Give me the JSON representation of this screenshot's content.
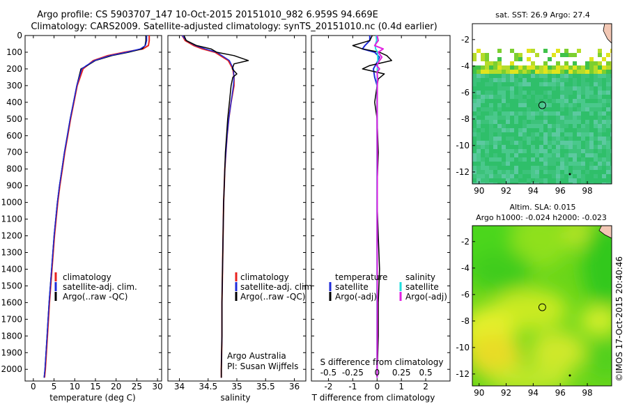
{
  "header": {
    "line1": "Argo profile: CS 5903707_147 10-Oct-2015 20151010_982 6.959S 94.669E",
    "line2": "Climatology: CARS2009. Satellite-adjusted climatology: synTS_20151010.nc (0.4d earlier)"
  },
  "footer": {
    "credit_line1": "Argo Australia",
    "credit_line2": "PI: Susan Wijffels",
    "stamp": "©IMOS 17-Oct-2015 20:40:46"
  },
  "colors": {
    "climatology": "#e8231f",
    "satellite": "#1f2bd8",
    "argo": "#000000",
    "s_satellite": "#20dede",
    "s_argo": "#e020e0"
  },
  "chart_data": [
    {
      "type": "line",
      "xlabel": "temperature (deg C)",
      "ylabel": "",
      "xlim": [
        -2,
        31
      ],
      "ylim": [
        2070,
        0
      ],
      "xticks": [
        0,
        5,
        10,
        15,
        20,
        25,
        30
      ],
      "yticks": [
        0,
        100,
        200,
        300,
        400,
        500,
        600,
        700,
        800,
        900,
        1000,
        1100,
        1200,
        1300,
        1400,
        1500,
        1600,
        1700,
        1800,
        1900,
        2000
      ],
      "legend": [
        "climatology",
        "satellite-adj. clim.",
        "Argo(..raw -QC)"
      ],
      "legend_placement": "lower-right",
      "series": [
        {
          "name": "climatology",
          "depth": [
            0,
            30,
            60,
            80,
            100,
            120,
            150,
            180,
            200,
            250,
            300,
            400,
            500,
            600,
            700,
            800,
            900,
            1000,
            1200,
            1400,
            1600,
            1800,
            2000,
            2050
          ],
          "values": [
            28.0,
            28.0,
            27.8,
            26.5,
            22.0,
            18.0,
            14.5,
            13.0,
            12.0,
            11.3,
            10.6,
            9.8,
            9.0,
            8.3,
            7.6,
            7.0,
            6.4,
            5.9,
            5.1,
            4.5,
            3.9,
            3.4,
            2.9,
            2.7
          ]
        },
        {
          "name": "satellite-adj. clim.",
          "depth": [
            0,
            30,
            60,
            80,
            100,
            120,
            150,
            180,
            200,
            250,
            300,
            400,
            500,
            600,
            700,
            800,
            900,
            1000,
            1200,
            1400,
            1600,
            1800,
            2000,
            2050
          ],
          "values": [
            27.2,
            27.2,
            27.0,
            26.3,
            23.0,
            19.0,
            15.0,
            13.0,
            11.5,
            11.0,
            10.5,
            9.7,
            8.9,
            8.2,
            7.5,
            6.9,
            6.3,
            5.8,
            5.0,
            4.4,
            3.8,
            3.3,
            2.8,
            2.6
          ]
        },
        {
          "name": "Argo(..raw -QC)",
          "depth": [
            0,
            30,
            60,
            80,
            100,
            120,
            150,
            180,
            200,
            250,
            300,
            400,
            500,
            600,
            700,
            800,
            900,
            1000,
            1200,
            1400,
            1600,
            1800,
            2000,
            2050
          ],
          "values": [
            27.4,
            27.4,
            27.1,
            25.8,
            22.5,
            18.5,
            14.8,
            12.8,
            11.7,
            11.1,
            10.5,
            9.7,
            8.9,
            8.2,
            7.5,
            6.9,
            6.3,
            5.8,
            5.0,
            4.4,
            3.8,
            3.3,
            2.8,
            2.6
          ]
        }
      ]
    },
    {
      "type": "line",
      "xlabel": "salinity",
      "ylabel": "",
      "xlim": [
        33.8,
        36.2
      ],
      "ylim": [
        2070,
        0
      ],
      "xticks": [
        34,
        34.5,
        35,
        35.5,
        36
      ],
      "legend": [
        "climatology",
        "satellite-adj. clim.",
        "Argo(..raw -QC)"
      ],
      "legend_placement": "lower-right",
      "series": [
        {
          "name": "climatology",
          "depth": [
            0,
            30,
            60,
            80,
            100,
            150,
            200,
            250,
            300,
            400,
            500,
            600,
            700,
            800,
            900,
            1000,
            1200,
            1400,
            1600,
            1800,
            2000,
            2050
          ],
          "values": [
            34.05,
            34.1,
            34.25,
            34.4,
            34.62,
            34.85,
            34.93,
            34.95,
            34.95,
            34.9,
            34.86,
            34.83,
            34.81,
            34.79,
            34.78,
            34.77,
            34.76,
            34.75,
            34.74,
            34.74,
            34.73,
            34.73
          ]
        },
        {
          "name": "satellite-adj. clim.",
          "depth": [
            0,
            30,
            60,
            80,
            100,
            150,
            200,
            250,
            300,
            400,
            500,
            600,
            700,
            800,
            900,
            1000,
            1200,
            1400,
            1600,
            1800,
            2000,
            2050
          ],
          "values": [
            34.05,
            34.12,
            34.28,
            34.45,
            34.65,
            34.87,
            34.94,
            34.95,
            34.94,
            34.9,
            34.86,
            34.83,
            34.81,
            34.79,
            34.78,
            34.77,
            34.76,
            34.75,
            34.74,
            34.74,
            34.73,
            34.73
          ]
        },
        {
          "name": "Argo(..raw -QC)",
          "depth": [
            0,
            30,
            60,
            80,
            100,
            120,
            150,
            170,
            200,
            230,
            250,
            300,
            400,
            500,
            600,
            700,
            800,
            900,
            1000,
            1200,
            1400,
            1600,
            1800,
            2000,
            2050
          ],
          "values": [
            34.08,
            34.12,
            34.3,
            34.55,
            34.65,
            34.95,
            35.2,
            34.95,
            34.92,
            35.0,
            34.93,
            34.9,
            34.87,
            34.84,
            34.82,
            34.8,
            34.79,
            34.78,
            34.77,
            34.76,
            34.75,
            34.74,
            34.74,
            34.73,
            34.73
          ]
        }
      ]
    },
    {
      "type": "line",
      "xlabel": "T difference from climatology",
      "secondary_xlabel": "S difference from climatology",
      "xlim": [
        -2.7,
        3.0
      ],
      "ylim": [
        2070,
        0
      ],
      "xticks": [
        -2,
        -1,
        0,
        1,
        2
      ],
      "secondary_xticks": [
        "-0.5",
        "-0.25",
        "0",
        "0.25",
        "0.5"
      ],
      "legend": [
        "temperature",
        "satellite",
        "Argo(-adj)",
        "salinity",
        "satellite",
        "Argo(-adj)"
      ],
      "legend_placement": "lower-center",
      "series": [
        {
          "name": "satellite",
          "depth": [
            0,
            30,
            60,
            80,
            100,
            130,
            160,
            200,
            250,
            300,
            400,
            600,
            800,
            1000,
            1400,
            1800,
            2050
          ],
          "values": [
            -0.3,
            -0.3,
            -0.5,
            -0.6,
            -0.1,
            0.1,
            0.0,
            -0.15,
            -0.1,
            0.0,
            0.0,
            0.0,
            0.0,
            0.0,
            0.0,
            0.0,
            0.0
          ]
        },
        {
          "name": "Argo(-adj)",
          "depth": [
            0,
            30,
            60,
            80,
            100,
            120,
            150,
            180,
            200,
            230,
            260,
            300,
            400,
            500,
            700,
            900,
            1000,
            1200,
            1400,
            1600,
            1800,
            2050
          ],
          "values": [
            -0.2,
            -0.3,
            -1.0,
            -0.6,
            0.1,
            0.4,
            0.6,
            -0.3,
            -0.6,
            0.3,
            0.05,
            0.0,
            -0.1,
            0.0,
            0.05,
            0.0,
            0.0,
            0.05,
            0.1,
            0.05,
            0.05,
            0.0
          ]
        },
        {
          "name": "satellite",
          "depth": [
            0,
            30,
            60,
            80,
            100,
            150,
            200,
            300,
            500,
            800,
            1200,
            1600,
            2050
          ],
          "values": [
            -0.04,
            -0.02,
            -0.08,
            -0.06,
            0.02,
            0.03,
            0.01,
            0.0,
            0.0,
            0.0,
            0.0,
            0.0,
            0.0
          ]
        },
        {
          "name": "Argo(-adj)",
          "depth": [
            0,
            30,
            60,
            80,
            100,
            130,
            150,
            180,
            200,
            220,
            260,
            300,
            500,
            800,
            1200,
            1600,
            2050
          ],
          "values": [
            0.0,
            0.05,
            -0.1,
            0.25,
            0.05,
            0.2,
            0.1,
            -0.02,
            0.1,
            0.0,
            0.02,
            0.01,
            0.0,
            0.01,
            0.0,
            0.01,
            0.0
          ]
        }
      ]
    },
    {
      "type": "heatmap",
      "title": "sat. SST: 26.9  Argo: 27.4",
      "xlim": [
        89.5,
        99.8
      ],
      "ylim": [
        -12.9,
        -0.8
      ],
      "xticks": [
        90,
        92,
        94,
        96,
        98
      ],
      "yticks": [
        -2,
        -4,
        -6,
        -8,
        -10,
        -12
      ],
      "marker": {
        "lon": 94.669,
        "lat": -6.959
      }
    },
    {
      "type": "heatmap",
      "title_line1": "Altim. SLA: 0.015",
      "title_line2": "Argo h1000: -0.024  h2000: -0.023",
      "xlim": [
        89.5,
        99.8
      ],
      "ylim": [
        -12.9,
        -0.8
      ],
      "xticks": [
        90,
        92,
        94,
        96,
        98
      ],
      "yticks": [
        -2,
        -4,
        -6,
        -8,
        -10,
        -12
      ],
      "marker": {
        "lon": 94.669,
        "lat": -6.959
      }
    }
  ]
}
